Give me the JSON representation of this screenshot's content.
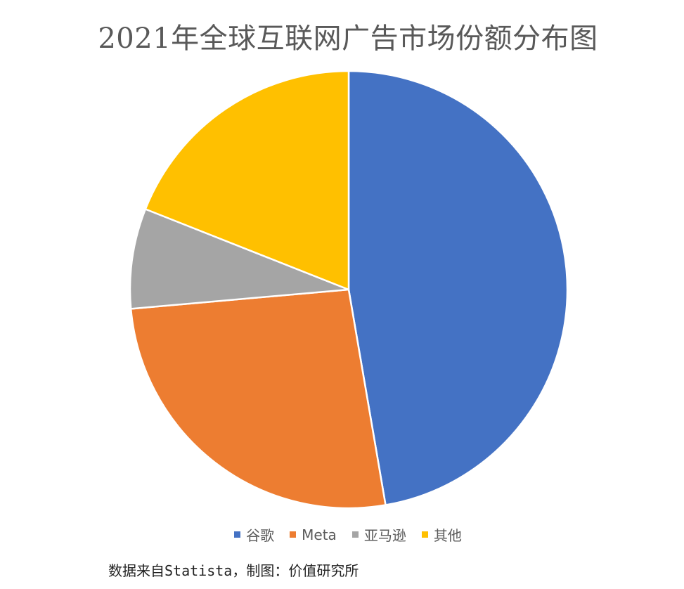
{
  "chart_data": {
    "type": "pie",
    "title": "2021年全球互联网广告市场份额分布图",
    "categories": [
      "谷歌",
      "Meta",
      "亚马逊",
      "其他"
    ],
    "values": [
      47.3,
      26.3,
      7.4,
      19.0
    ],
    "unit": "%",
    "colors": [
      "#4472C4",
      "#ED7D31",
      "#A5A5A5",
      "#FFC000"
    ],
    "start_angle_deg": 0,
    "direction": "clockwise",
    "legend_position": "bottom",
    "data_labels": false
  },
  "source_note": "数据来自Statista，制图：价值研究所"
}
